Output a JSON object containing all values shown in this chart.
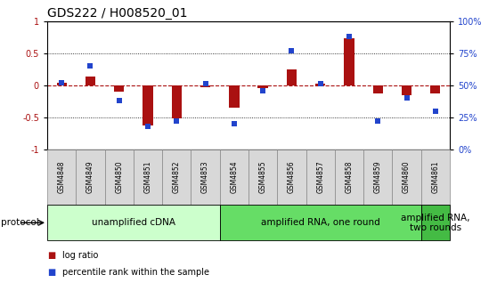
{
  "title": "GDS222 / H008520_01",
  "samples": [
    "GSM4848",
    "GSM4849",
    "GSM4850",
    "GSM4851",
    "GSM4852",
    "GSM4853",
    "GSM4854",
    "GSM4855",
    "GSM4856",
    "GSM4857",
    "GSM4858",
    "GSM4859",
    "GSM4860",
    "GSM4861"
  ],
  "log_ratio": [
    0.04,
    0.13,
    -0.1,
    -0.62,
    -0.52,
    -0.03,
    -0.35,
    -0.05,
    0.25,
    0.03,
    0.73,
    -0.13,
    -0.15,
    -0.13
  ],
  "percentile": [
    0.52,
    0.65,
    0.38,
    0.18,
    0.22,
    0.51,
    0.2,
    0.46,
    0.77,
    0.51,
    0.88,
    0.22,
    0.4,
    0.3
  ],
  "bar_color": "#aa1111",
  "square_color": "#2244cc",
  "ylim_left": [
    -1.0,
    1.0
  ],
  "yticks_left": [
    -1.0,
    -0.5,
    0.0,
    0.5,
    1.0
  ],
  "ytick_labels_left": [
    "-1",
    "-0.5",
    "0",
    "0.5",
    "1"
  ],
  "ytick_labels_right": [
    "0%",
    "25%",
    "50%",
    "75%",
    "100%"
  ],
  "dotted_lines": [
    -0.5,
    0.5
  ],
  "zero_line": 0.0,
  "protocol_groups": [
    {
      "label": "unamplified cDNA",
      "start": 0,
      "end": 5,
      "color": "#ccffcc"
    },
    {
      "label": "amplified RNA, one round",
      "start": 6,
      "end": 12,
      "color": "#66dd66"
    },
    {
      "label": "amplified RNA,\ntwo rounds",
      "start": 13,
      "end": 13,
      "color": "#44bb44"
    }
  ],
  "legend_entries": [
    {
      "color": "#aa1111",
      "label": "log ratio"
    },
    {
      "color": "#2244cc",
      "label": "percentile rank within the sample"
    }
  ],
  "protocol_label": "protocol",
  "title_fontsize": 10,
  "tick_fontsize": 7,
  "label_fontsize": 7,
  "protocol_fontsize": 7.5,
  "sample_fontsize": 5.5,
  "bar_width": 0.35,
  "square_size": 4,
  "sample_box_color": "#d8d8d8",
  "sample_box_edge": "#888888"
}
